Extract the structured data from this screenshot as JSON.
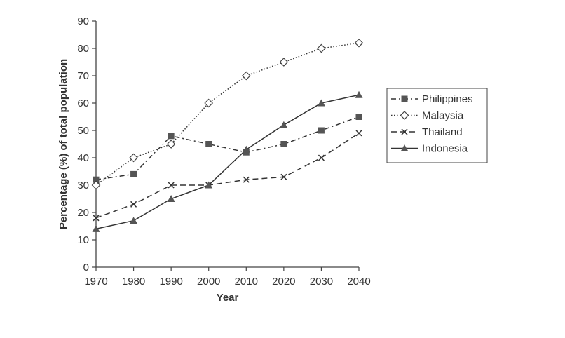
{
  "chart_data": {
    "type": "line",
    "xlabel": "Year",
    "ylabel": "Percentage (%) of total population",
    "x": [
      1970,
      1980,
      1990,
      2000,
      2010,
      2020,
      2030,
      2040
    ],
    "xlim": [
      1970,
      2040
    ],
    "ylim": [
      0,
      90
    ],
    "yticks": [
      0,
      10,
      20,
      30,
      40,
      50,
      60,
      70,
      80,
      90
    ],
    "xticks": [
      1970,
      1980,
      1990,
      2000,
      2010,
      2020,
      2030,
      2040
    ],
    "grid": false,
    "legend_position": "right",
    "series": [
      {
        "name": "Philippines",
        "values": [
          32,
          34,
          48,
          45,
          42,
          45,
          50,
          55
        ],
        "marker": "square",
        "line_style": "dash-dot"
      },
      {
        "name": "Malaysia",
        "values": [
          30,
          40,
          45,
          60,
          70,
          75,
          80,
          82
        ],
        "marker": "diamond",
        "line_style": "dotted"
      },
      {
        "name": "Thailand",
        "values": [
          18,
          23,
          30,
          30,
          32,
          33,
          40,
          49
        ],
        "marker": "x",
        "line_style": "dashed"
      },
      {
        "name": "Indonesia",
        "values": [
          14,
          17,
          25,
          30,
          43,
          52,
          60,
          63
        ],
        "marker": "triangle",
        "line_style": "solid"
      }
    ]
  }
}
